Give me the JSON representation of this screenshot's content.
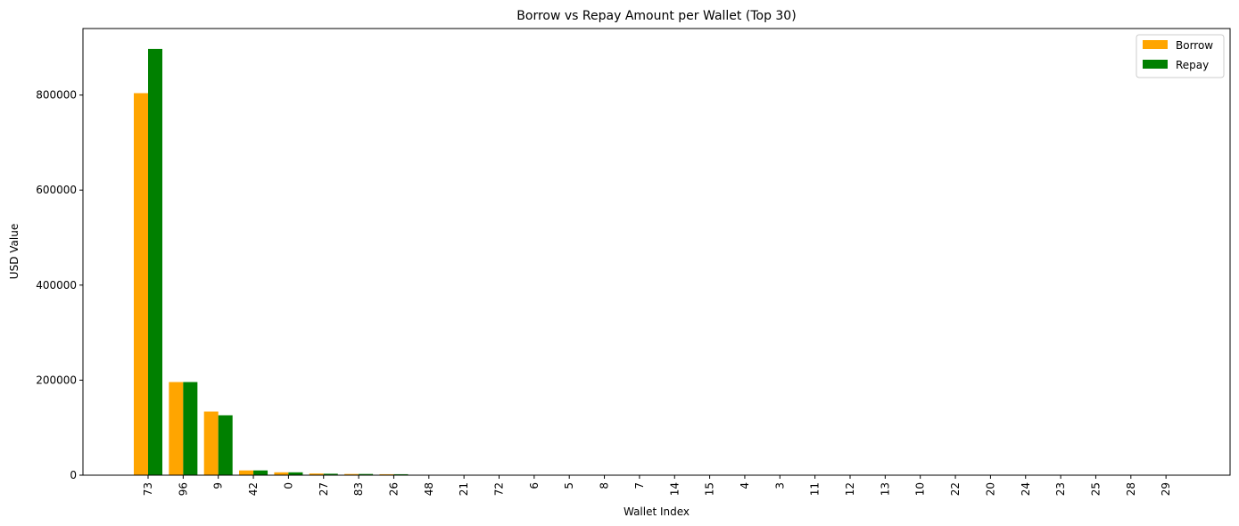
{
  "chart_data": {
    "type": "bar",
    "title": "Borrow vs Repay Amount per Wallet (Top 30)",
    "xlabel": "Wallet Index",
    "ylabel": "USD Value",
    "categories": [
      "73",
      "96",
      "9",
      "42",
      "0",
      "27",
      "83",
      "26",
      "48",
      "21",
      "72",
      "6",
      "5",
      "8",
      "7",
      "14",
      "15",
      "4",
      "3",
      "11",
      "12",
      "13",
      "10",
      "22",
      "20",
      "24",
      "23",
      "25",
      "28",
      "29"
    ],
    "series": [
      {
        "name": "Borrow",
        "color": "#ffa500",
        "values": [
          804000,
          196000,
          134000,
          10000,
          6000,
          3500,
          2500,
          2000,
          800,
          500,
          400,
          300,
          300,
          200,
          200,
          100,
          100,
          100,
          100,
          50,
          50,
          50,
          50,
          50,
          50,
          50,
          50,
          50,
          50,
          50
        ]
      },
      {
        "name": "Repay",
        "color": "#008000",
        "values": [
          897000,
          196000,
          126000,
          10000,
          6000,
          3000,
          2500,
          2000,
          800,
          500,
          400,
          300,
          300,
          200,
          200,
          100,
          100,
          100,
          100,
          50,
          50,
          50,
          50,
          50,
          50,
          50,
          50,
          50,
          50,
          50
        ]
      }
    ],
    "ylim": [
      0,
      940000
    ],
    "yticks": [
      0,
      200000,
      400000,
      600000,
      800000
    ],
    "grid": false,
    "legend_position": "top-right"
  }
}
